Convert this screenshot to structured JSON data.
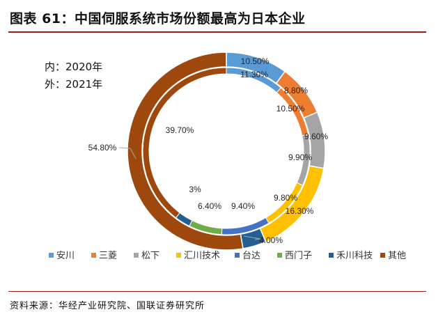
{
  "title": "图表 61：中国伺服系统市场份额最高为日本企业",
  "source": "资料来源：华经产业研究院、国联证券研究所",
  "chart_data": {
    "type": "donut",
    "title": "图表 61：中国伺服系统市场份额最高为日本企业",
    "annotation": [
      "内：2020年",
      "外：2021年"
    ],
    "categories": [
      "安川",
      "三菱",
      "松下",
      "汇川技术",
      "台达",
      "西门子",
      "禾川科技",
      "其他"
    ],
    "colors": [
      "#5B9BD5",
      "#ED7D31",
      "#A5A5A5",
      "#FFC000",
      "#4472C4",
      "#70AD47",
      "#255E91",
      "#9E480E"
    ],
    "series": [
      {
        "name": "2020年",
        "ring": "inner",
        "values": [
          11.3,
          10.5,
          9.9,
          9.8,
          9.4,
          6.4,
          3.0,
          39.7
        ],
        "labels": [
          "11.30%",
          "10.50%",
          "9.90%",
          "9.80%",
          "9.40%",
          "6.40%",
          "3%",
          "39.70%"
        ]
      },
      {
        "name": "2021年",
        "ring": "outer",
        "values": [
          10.5,
          8.8,
          9.6,
          16.3,
          0,
          0,
          4.0,
          54.8
        ],
        "labels": [
          "10.50%",
          "8.80%",
          "9.60%",
          "16.30%",
          "",
          "",
          "4.00%",
          "54.80%"
        ]
      }
    ],
    "legend_position": "bottom"
  }
}
